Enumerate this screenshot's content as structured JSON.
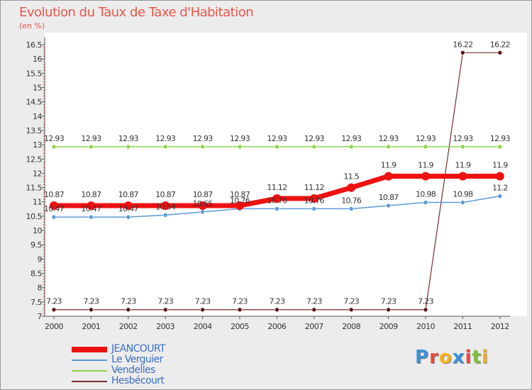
{
  "title": "Evolution du Taux de Taxe d'Habitation",
  "subtitle": "(en %)",
  "logo": {
    "text": "Proxiti",
    "letters": [
      {
        "ch": "P",
        "color": "#3b8fd6"
      },
      {
        "ch": "r",
        "color": "#e84a3a"
      },
      {
        "ch": "o",
        "color": "#f5b21b"
      },
      {
        "ch": "x",
        "color": "#3b8fd6"
      },
      {
        "ch": "i",
        "color": "#e84a3a"
      },
      {
        "ch": "t",
        "color": "#7dbf3a"
      },
      {
        "ch": "i",
        "color": "#f5b21b"
      }
    ]
  },
  "chart_data": {
    "type": "line",
    "title": "Evolution du Taux de Taxe d'Habitation",
    "ylabel": "(en %)",
    "xlabel": "",
    "x": [
      "2000",
      "2001",
      "2002",
      "2003",
      "2004",
      "2005",
      "2006",
      "2007",
      "2008",
      "2009",
      "2010",
      "2011",
      "2012"
    ],
    "ylim": [
      7,
      16.5
    ],
    "yticks": [
      "7",
      "7.5",
      "8",
      "8.5",
      "9",
      "9.5",
      "10",
      "10.5",
      "11",
      "11.5",
      "12",
      "12.5",
      "13",
      "13.5",
      "14",
      "14.5",
      "15",
      "15.5",
      "16",
      "16.5"
    ],
    "grid": false,
    "legend_position": "bottom-left",
    "series": [
      {
        "name": "JEANCOURT",
        "color": "#ee1111",
        "values": [
          10.87,
          10.87,
          10.87,
          10.87,
          10.87,
          10.87,
          11.12,
          11.12,
          11.5,
          11.9,
          11.9,
          11.9,
          11.9
        ]
      },
      {
        "name": "Le Verguier",
        "color": "#5b9bd5",
        "values": [
          10.47,
          10.47,
          10.47,
          10.54,
          10.65,
          10.76,
          10.76,
          10.76,
          10.76,
          10.87,
          10.98,
          10.98,
          11.2
        ]
      },
      {
        "name": "Vendelles",
        "color": "#8fd44a",
        "values": [
          12.93,
          12.93,
          12.93,
          12.93,
          12.93,
          12.93,
          12.93,
          12.93,
          12.93,
          12.93,
          12.93,
          12.93,
          12.93
        ]
      },
      {
        "name": "Hesbécourt",
        "color": "#7b2c2c",
        "values": [
          7.23,
          7.23,
          7.23,
          7.23,
          7.23,
          7.23,
          7.23,
          7.23,
          7.23,
          7.23,
          7.23,
          16.22,
          16.22
        ]
      }
    ],
    "data_labels": [
      [
        "10.87",
        "10.87",
        "10.87",
        "10.87",
        "10.87",
        "10.87",
        "11.12",
        "11.12",
        "11.5",
        "11.9",
        "11.9",
        "11.9",
        "11.9"
      ],
      [
        "10.47",
        "10.47",
        "10.47",
        "10.54",
        "10.65",
        "10.76",
        "10.76",
        "10.76",
        "10.76",
        "10.87",
        "10.98",
        "10.98",
        "11.2"
      ],
      [
        "12.93",
        "12.93",
        "12.93",
        "12.93",
        "12.93",
        "12.93",
        "12.93",
        "12.93",
        "12.93",
        "12.93",
        "12.93",
        "12.93",
        "12.93"
      ],
      [
        "7.23",
        "7.23",
        "7.23",
        "7.23",
        "7.23",
        "7.23",
        "7.23",
        "7.23",
        "7.23",
        "7.23",
        "7.23",
        "16.22",
        "16.22"
      ]
    ]
  }
}
